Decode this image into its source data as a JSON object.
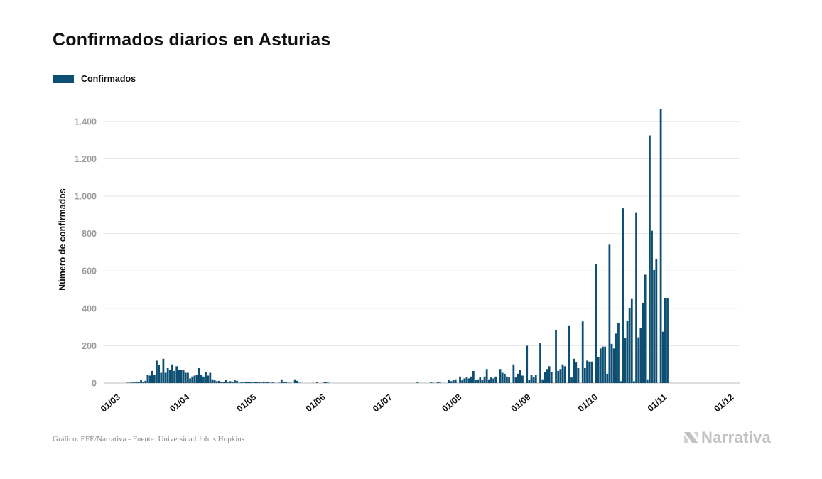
{
  "title": "Confirmados diarios en Asturias",
  "legend": {
    "label": "Confirmados",
    "color": "#0d4f73"
  },
  "source": "Gráfico: EFE/Narrativa - Fuente: Universidad Johns Hopkins",
  "brand": {
    "name": "Narrativa",
    "icon": "narrativa-logo-icon",
    "color": "#c2c2c2"
  },
  "chart_data": {
    "type": "bar",
    "title": "Confirmados diarios en Asturias",
    "ylabel": "Número de confirmados",
    "xlabel": "",
    "ylim": [
      0,
      1550
    ],
    "yticks": [
      0,
      200,
      400,
      600,
      800,
      1000,
      1200,
      1400
    ],
    "ytick_labels": [
      "0",
      "200",
      "400",
      "600",
      "800",
      "1.000",
      "1.200",
      "1.400"
    ],
    "xticks": [
      "01/03",
      "01/04",
      "01/05",
      "01/06",
      "01/07",
      "01/08",
      "01/09",
      "01/10",
      "01/11",
      "01/12"
    ],
    "grid": true,
    "legend_position": "top-left",
    "start_date": "01/03",
    "series": [
      {
        "name": "Confirmados",
        "color": "#0d4f73",
        "values": [
          0,
          0,
          0,
          0,
          0,
          0,
          0,
          0,
          0,
          2,
          2,
          3,
          5,
          8,
          6,
          18,
          8,
          12,
          45,
          40,
          65,
          45,
          120,
          95,
          55,
          130,
          55,
          80,
          70,
          100,
          65,
          90,
          70,
          70,
          70,
          55,
          55,
          25,
          35,
          40,
          45,
          80,
          45,
          35,
          60,
          40,
          55,
          20,
          15,
          10,
          12,
          8,
          5,
          15,
          3,
          10,
          8,
          15,
          12,
          2,
          4,
          3,
          8,
          6,
          5,
          3,
          6,
          4,
          5,
          3,
          8,
          5,
          6,
          2,
          3,
          1,
          0,
          2,
          20,
          5,
          8,
          2,
          2,
          0,
          20,
          12,
          2,
          0,
          0,
          0,
          0,
          0,
          1,
          0,
          5,
          0,
          0,
          3,
          6,
          2,
          0,
          0,
          0,
          0,
          0,
          0,
          0,
          0,
          0,
          0,
          0,
          0,
          0,
          0,
          0,
          0,
          0,
          0,
          0,
          0,
          0,
          0,
          0,
          0,
          0,
          0,
          0,
          0,
          0,
          0,
          0,
          0,
          0,
          0,
          0,
          0,
          0,
          0,
          0,
          5,
          0,
          0,
          0,
          0,
          0,
          3,
          2,
          0,
          5,
          3,
          0,
          0,
          0,
          15,
          10,
          18,
          20,
          0,
          35,
          15,
          25,
          30,
          25,
          35,
          65,
          15,
          20,
          30,
          15,
          35,
          75,
          20,
          30,
          25,
          35,
          0,
          75,
          55,
          50,
          35,
          30,
          0,
          100,
          30,
          50,
          70,
          40,
          0,
          200,
          15,
          45,
          30,
          45,
          0,
          215,
          20,
          60,
          75,
          90,
          60,
          0,
          285,
          65,
          75,
          100,
          90,
          0,
          305,
          30,
          130,
          110,
          80,
          0,
          330,
          80,
          120,
          115,
          115,
          0,
          635,
          140,
          185,
          195,
          195,
          50,
          740,
          210,
          185,
          265,
          320,
          10,
          935,
          240,
          335,
          400,
          450,
          10,
          910,
          245,
          295,
          430,
          580,
          20,
          1325,
          815,
          605,
          665,
          0,
          1465,
          275,
          455,
          455
        ]
      }
    ]
  }
}
